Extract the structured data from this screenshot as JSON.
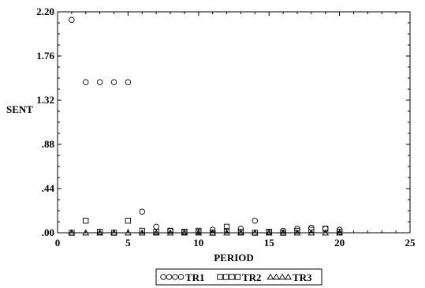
{
  "chart_data": {
    "type": "scatter",
    "title": "",
    "xlabel": "PERIOD",
    "ylabel": "SENT",
    "xlim": [
      0,
      25
    ],
    "ylim": [
      0,
      2.2
    ],
    "xticks": [
      0,
      5,
      10,
      15,
      20,
      25
    ],
    "xtick_labels": [
      "0",
      "5",
      "10",
      "15",
      "20",
      "25"
    ],
    "yticks": [
      0,
      0.44,
      0.88,
      1.32,
      1.76,
      2.2
    ],
    "ytick_labels": [
      ".00",
      ".44",
      ".88",
      "1.32",
      "1.76",
      "2.20"
    ],
    "grid": false,
    "legend_position": "bottom",
    "series": [
      {
        "name": "TR1",
        "marker": "circle",
        "legend_symbols": "○○○○",
        "x": [
          1,
          2,
          3,
          4,
          5,
          6,
          7,
          8,
          9,
          10,
          11,
          12,
          13,
          14,
          15,
          16,
          17,
          18,
          19,
          20
        ],
        "y": [
          2.12,
          1.5,
          1.5,
          1.5,
          1.5,
          0.21,
          0.06,
          0.02,
          0.01,
          0.01,
          0.03,
          0.02,
          0.04,
          0.12,
          0.01,
          0.02,
          0.04,
          0.05,
          0.04,
          0.03
        ]
      },
      {
        "name": "TR2",
        "marker": "square",
        "legend_symbols": "□□□□",
        "x": [
          1,
          2,
          3,
          4,
          5,
          6,
          7,
          8,
          9,
          10,
          11,
          12,
          13,
          14,
          15,
          16,
          17,
          18,
          19,
          20
        ],
        "y": [
          0.0,
          0.12,
          0.01,
          0.0,
          0.12,
          0.02,
          0.01,
          0.02,
          0.01,
          0.02,
          0.0,
          0.06,
          0.01,
          0.0,
          0.01,
          0.0,
          0.02,
          0.03,
          0.04,
          0.01
        ]
      },
      {
        "name": "TR3",
        "marker": "triangle",
        "legend_symbols": "△△△△",
        "x": [
          1,
          2,
          3,
          4,
          5,
          6,
          7,
          8,
          9,
          10,
          11,
          12,
          13,
          14,
          15,
          16,
          17,
          18,
          19,
          20
        ],
        "y": [
          0.0,
          0.0,
          0.0,
          0.0,
          0.0,
          0.0,
          0.0,
          0.0,
          0.0,
          0.0,
          0.0,
          0.0,
          0.0,
          0.0,
          0.0,
          0.0,
          0.0,
          0.0,
          0.0,
          0.0
        ]
      }
    ]
  }
}
